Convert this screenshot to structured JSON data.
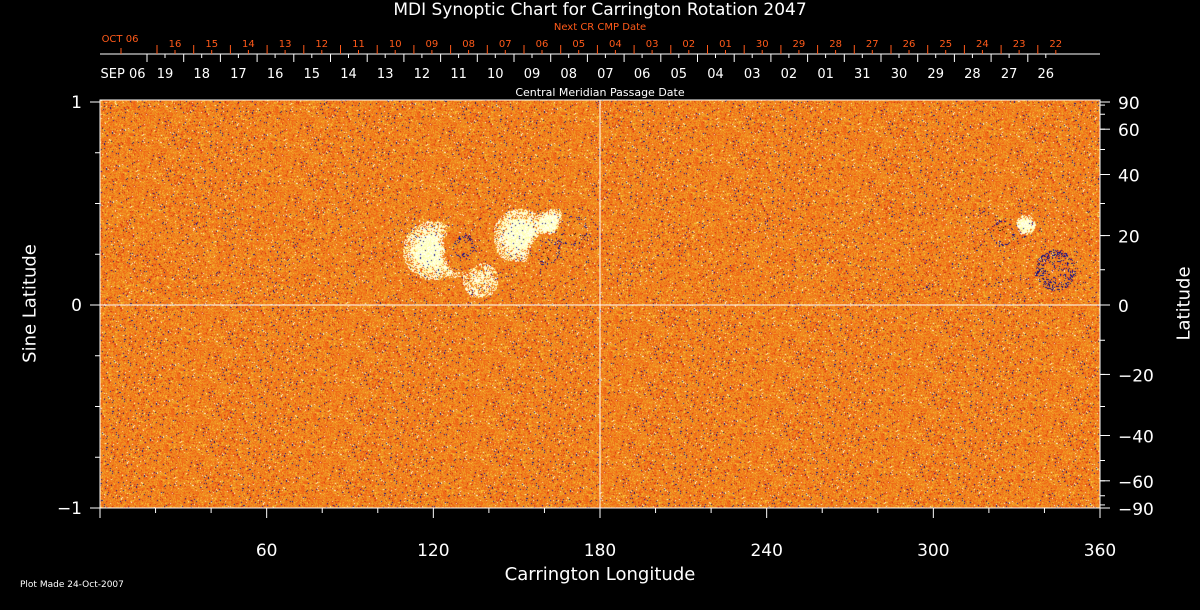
{
  "chart_data": {
    "type": "heatmap",
    "title": "MDI Synoptic Chart for Carrington Rotation 2047",
    "xlabel": "Carrington Longitude",
    "ylabel": "Sine Latitude",
    "y2label": "Latitude",
    "xlim": [
      0,
      360
    ],
    "ylim": [
      -1,
      1
    ],
    "x_ticks": [
      "60",
      "120",
      "180",
      "240",
      "300",
      "360"
    ],
    "y_ticks": [
      "1",
      "0",
      "−1"
    ],
    "y2_ticks": [
      "90",
      "60",
      "40",
      "20",
      "0",
      "−20",
      "−40",
      "−60",
      "−90"
    ],
    "top_axis_label": "Central Meridian Passage Date",
    "top_axis_dates": [
      "SEP 06",
      "19",
      "18",
      "17",
      "16",
      "15",
      "14",
      "13",
      "12",
      "11",
      "10",
      "09",
      "08",
      "07",
      "06",
      "05",
      "04",
      "03",
      "02",
      "01",
      "31",
      "30",
      "29",
      "28",
      "27",
      "26"
    ],
    "next_cr_label": "Next CR CMP Date",
    "next_cr_dates": [
      "OCT 06",
      "16",
      "15",
      "14",
      "13",
      "12",
      "11",
      "10",
      "09",
      "08",
      "07",
      "06",
      "05",
      "04",
      "03",
      "02",
      "01",
      "30",
      "29",
      "28",
      "27",
      "26",
      "25",
      "24",
      "23",
      "22"
    ],
    "grid": "crosshair at 180 longitude and 0 latitude",
    "colors": {
      "background_field": "#f05a14",
      "positive": "#ffffff",
      "negative": "#000050",
      "axes": "#ffffff",
      "next_cr": "#ff5a1a"
    }
  },
  "footer": {
    "plot_made": "Plot Made 24-Oct-2007"
  }
}
